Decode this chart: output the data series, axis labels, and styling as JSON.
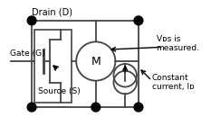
{
  "bg_color": "#ffffff",
  "line_color": "#444444",
  "dot_color": "#000000",
  "text_color": "#000000",
  "drain_label": "Drain (D)",
  "gate_label": "Gate (G)",
  "source_label": "Source (S)",
  "vds_label": "Vᴅs is\nmeasured.",
  "current_label": "Constant\ncurrent, Iᴅ",
  "figsize": [
    2.33,
    1.4
  ],
  "dpi": 100
}
